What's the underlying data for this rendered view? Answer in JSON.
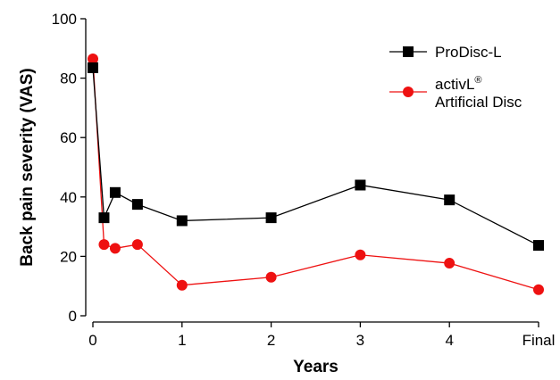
{
  "chart_data": {
    "type": "line",
    "xlabel": "Years",
    "ylabel": "Back pain severity (VAS)",
    "ylim": [
      0,
      100
    ],
    "y_ticks": [
      0,
      20,
      40,
      60,
      80,
      100
    ],
    "x_ticks": [
      {
        "value": 0,
        "label": "0"
      },
      {
        "value": 1,
        "label": "1"
      },
      {
        "value": 2,
        "label": "2"
      },
      {
        "value": 3,
        "label": "3"
      },
      {
        "value": 4,
        "label": "4"
      },
      {
        "value": 5,
        "label": "Final"
      }
    ],
    "xlim": [
      0,
      5
    ],
    "legend_position": "top-right",
    "series": [
      {
        "name": "ProDisc-L",
        "marker": "square",
        "color": "#000000",
        "x": [
          0,
          0.125,
          0.25,
          0.5,
          1,
          2,
          3,
          4,
          5
        ],
        "y": [
          83.5,
          33,
          41.5,
          37.5,
          32,
          33,
          44,
          39,
          23.7
        ]
      },
      {
        "name": "activL",
        "name_sup": "®",
        "name_line2": "Artificial Disc",
        "marker": "circle",
        "color": "#ee1111",
        "x": [
          0,
          0.125,
          0.25,
          0.5,
          1,
          2,
          3,
          4,
          5
        ],
        "y": [
          86.5,
          24,
          22.7,
          24,
          10.3,
          13,
          20.5,
          17.7,
          8.8
        ]
      }
    ]
  }
}
